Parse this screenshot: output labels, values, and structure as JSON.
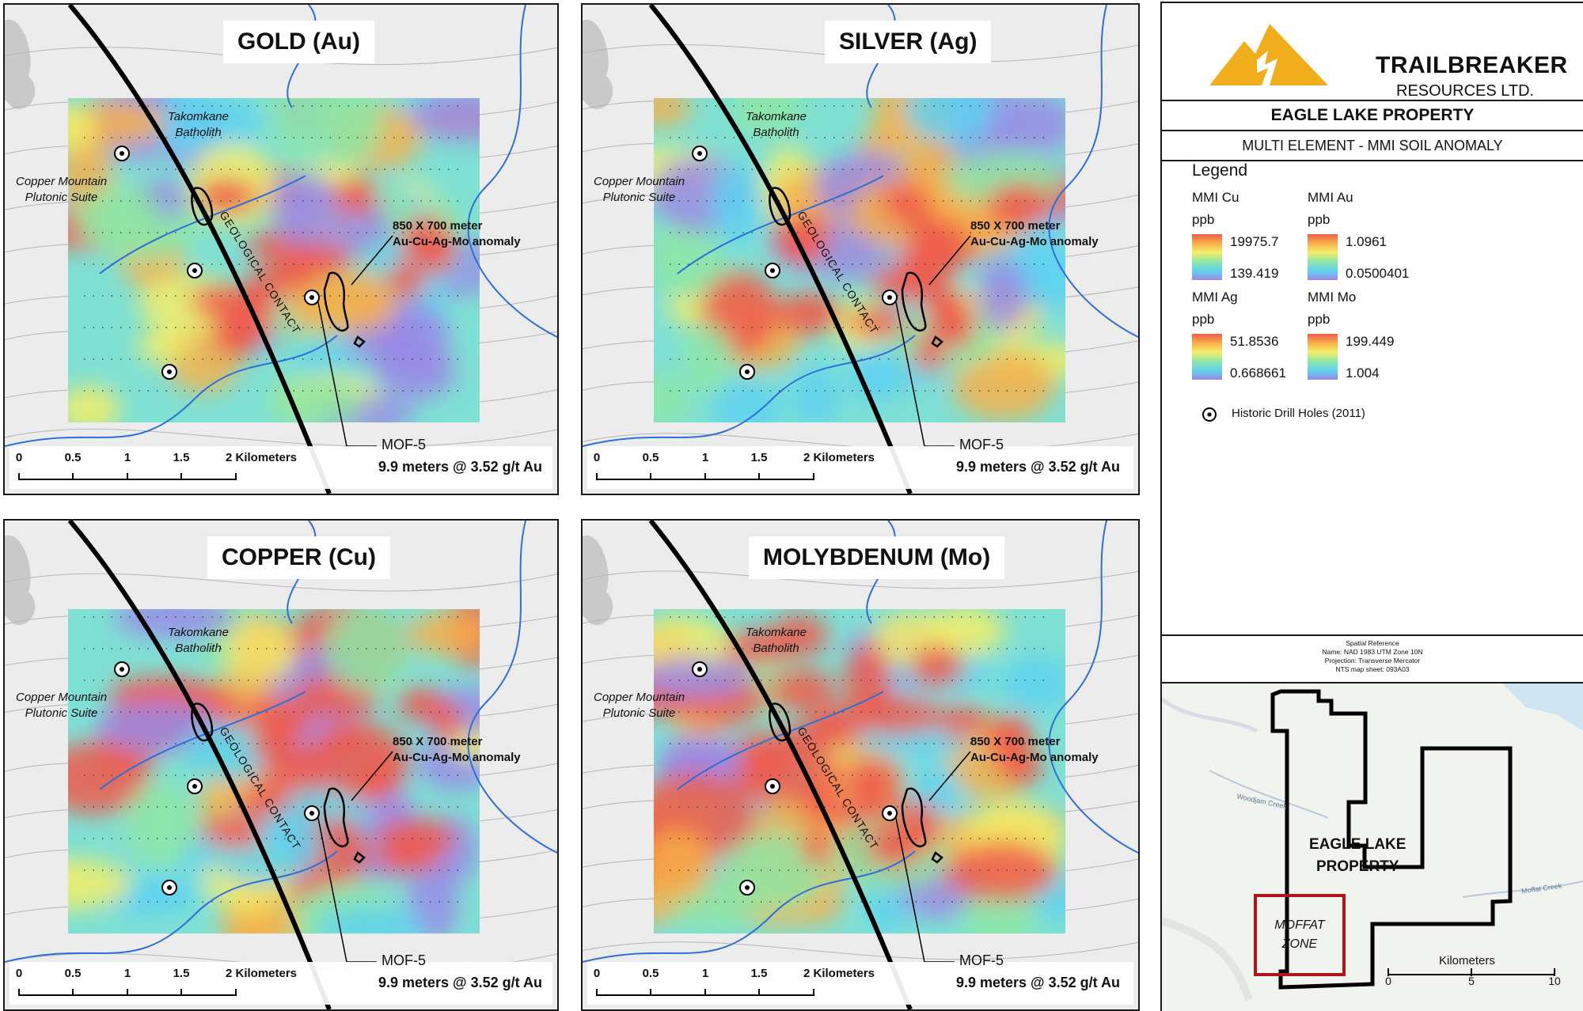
{
  "panels": [
    {
      "title": "GOLD (Au)",
      "key": "gold"
    },
    {
      "title": "SILVER (Ag)",
      "key": "silver"
    },
    {
      "title": "COPPER (Cu)",
      "key": "copper"
    },
    {
      "title": "MOLYBDENUM (Mo)",
      "key": "molybdenum"
    }
  ],
  "map_labels": {
    "batholith": "Takomkane\nBatholith",
    "plutonic": "Copper Mountain\nPlutonic Suite",
    "contact": "GEOLOGICAL CONTACT",
    "anomaly": "850 X 700 meter\nAu-Cu-Ag-Mo anomaly",
    "hole_name": "MOF-5",
    "hole_result": "9.9 meters @ 3.52 g/t Au"
  },
  "scale": {
    "ticks": [
      "0",
      "0.5",
      "1",
      "1.5",
      "2 Kilometers"
    ]
  },
  "company": {
    "name": "TRAILBREAKER",
    "sub": "RESOURCES LTD."
  },
  "headers": {
    "property": "EAGLE LAKE PROPERTY",
    "subtitle": "MULTI ELEMENT - MMI SOIL ANOMALY"
  },
  "legend": {
    "title": "Legend",
    "items": [
      {
        "name": "MMI Cu",
        "unit": "ppb",
        "max": "19975.7",
        "min": "139.419"
      },
      {
        "name": "MMI Au",
        "unit": "ppb",
        "max": "1.0961",
        "min": "0.0500401"
      },
      {
        "name": "MMI Ag",
        "unit": "ppb",
        "max": "51.8536",
        "min": "0.668661"
      },
      {
        "name": "MMI Mo",
        "unit": "ppb",
        "max": "199.449",
        "min": "1.004"
      }
    ],
    "drill_holes": "Historic Drill Holes (2011)"
  },
  "spatial_reference": [
    "Spatial Reference",
    "Name: NAD 1983 UTM Zone 10N",
    "Projection: Transverse Mercator",
    "NTS map sheet: 093A03"
  ],
  "inset": {
    "property_label": "EAGLE LAKE\nPROPERTY",
    "zone_label": "MOFFAT\nZONE",
    "creek_1": "Woodjam Creek",
    "creek_2": "Moffat Creek",
    "scale_title": "Kilometers",
    "scale_ticks": [
      "0",
      "5",
      "10"
    ]
  },
  "colors": {
    "ramp": [
      "#f05b4c",
      "#f7b04a",
      "#f5ee6a",
      "#8ee6a6",
      "#5fd2f0",
      "#9a8ae6"
    ],
    "frame": "#1a1a1a",
    "background": "#ececec",
    "river": "#2f6fd6",
    "inset_zone": "#b0151b",
    "logo": "#f0ae1c"
  }
}
